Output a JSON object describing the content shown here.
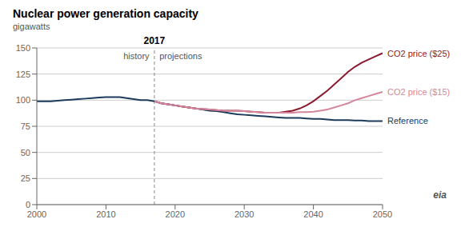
{
  "chart_data": {
    "type": "line",
    "title": "Nuclear power generation capacity",
    "subtitle": "gigawatts",
    "xlim": [
      2000,
      2050
    ],
    "ylim": [
      0,
      150
    ],
    "xticks": [
      2000,
      2010,
      2020,
      2030,
      2040,
      2050
    ],
    "yticks": [
      0,
      25,
      50,
      75,
      100,
      125,
      150
    ],
    "grid": true,
    "vline": {
      "x": 2017,
      "label": "2017"
    },
    "annotations": [
      {
        "text": "history",
        "x": 2016.5,
        "y": 148
      },
      {
        "text": "projections",
        "x": 2017.5,
        "y": 148
      },
      {
        "text": "eia"
      }
    ],
    "series": [
      {
        "name": "Reference",
        "color": "#1b3a5c",
        "x": [
          2000,
          2001,
          2002,
          2003,
          2004,
          2005,
          2006,
          2007,
          2008,
          2009,
          2010,
          2011,
          2012,
          2013,
          2014,
          2015,
          2016,
          2017,
          2018,
          2019,
          2020,
          2021,
          2022,
          2023,
          2024,
          2025,
          2026,
          2027,
          2028,
          2029,
          2030,
          2031,
          2032,
          2033,
          2034,
          2035,
          2036,
          2037,
          2038,
          2039,
          2040,
          2041,
          2042,
          2043,
          2044,
          2045,
          2046,
          2047,
          2048,
          2049,
          2050
        ],
        "values": [
          99,
          99,
          99,
          99.5,
          100,
          100.5,
          101,
          101.5,
          102,
          102.5,
          103,
          103,
          103,
          102,
          101,
          100,
          100,
          99,
          97,
          96,
          95,
          94,
          93,
          92,
          91,
          90,
          89.5,
          88.5,
          87.5,
          86.5,
          86,
          85.5,
          85,
          84.5,
          84,
          83.5,
          83,
          83,
          83,
          82.5,
          82,
          82,
          81.5,
          81,
          81,
          81,
          80.5,
          80.5,
          80,
          80,
          80
        ]
      },
      {
        "name": "CO2 price ($25)",
        "color": "#8b1a2e",
        "x": [
          2017,
          2018,
          2019,
          2020,
          2021,
          2022,
          2023,
          2024,
          2025,
          2026,
          2027,
          2028,
          2029,
          2030,
          2031,
          2032,
          2033,
          2034,
          2035,
          2036,
          2037,
          2038,
          2039,
          2040,
          2041,
          2042,
          2043,
          2044,
          2045,
          2046,
          2047,
          2048,
          2049,
          2050
        ],
        "values": [
          99,
          97,
          96,
          95,
          94,
          93,
          92,
          91.5,
          91,
          90.5,
          90,
          90,
          90,
          89.5,
          89,
          88.5,
          88,
          88,
          88,
          89,
          90,
          92,
          95,
          99,
          104,
          109,
          115,
          121,
          127,
          132,
          136,
          139,
          142,
          145
        ]
      },
      {
        "name": "CO2 price ($15)",
        "color": "#d4879c",
        "x": [
          2017,
          2018,
          2019,
          2020,
          2021,
          2022,
          2023,
          2024,
          2025,
          2026,
          2027,
          2028,
          2029,
          2030,
          2031,
          2032,
          2033,
          2034,
          2035,
          2036,
          2037,
          2038,
          2039,
          2040,
          2041,
          2042,
          2043,
          2044,
          2045,
          2046,
          2047,
          2048,
          2049,
          2050
        ],
        "values": [
          99,
          97,
          96,
          95,
          94,
          93,
          92,
          91.5,
          91,
          90.5,
          90,
          90,
          90,
          89.5,
          89,
          88.5,
          88,
          88,
          88,
          88,
          88,
          88.5,
          88.5,
          89,
          90,
          91,
          93,
          95,
          97,
          100,
          102,
          104,
          106,
          108
        ]
      }
    ]
  }
}
